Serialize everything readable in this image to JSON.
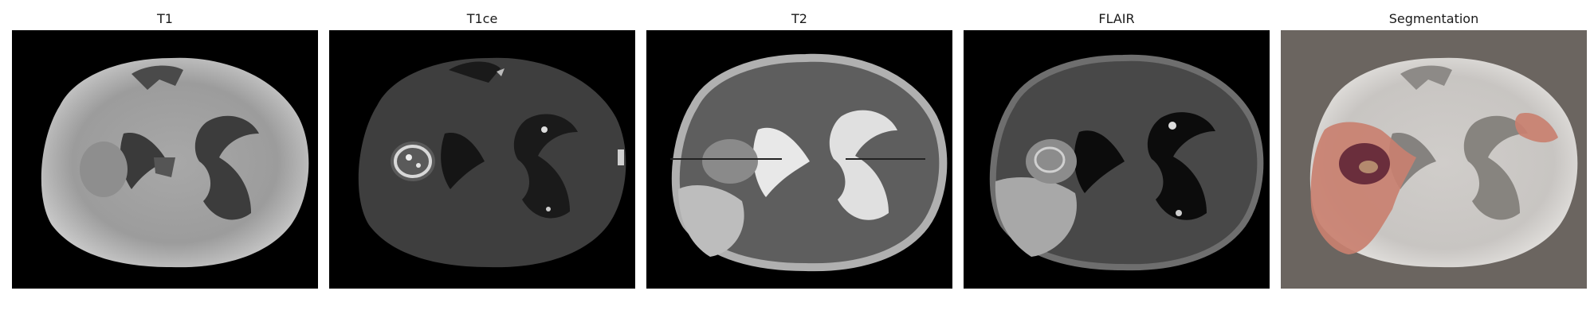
{
  "figure": {
    "panels": [
      {
        "title": "T1",
        "modality": "t1"
      },
      {
        "title": "T1ce",
        "modality": "t1ce"
      },
      {
        "title": "T2",
        "modality": "t2"
      },
      {
        "title": "FLAIR",
        "modality": "flair"
      },
      {
        "title": "Segmentation",
        "modality": "segmentation"
      }
    ],
    "colors": {
      "background": "#000000",
      "segmentation_background": "#6b6560",
      "edema": "#d98a76",
      "tumor_core": "#6a2e3c",
      "enhancing": "#c8a080"
    }
  }
}
